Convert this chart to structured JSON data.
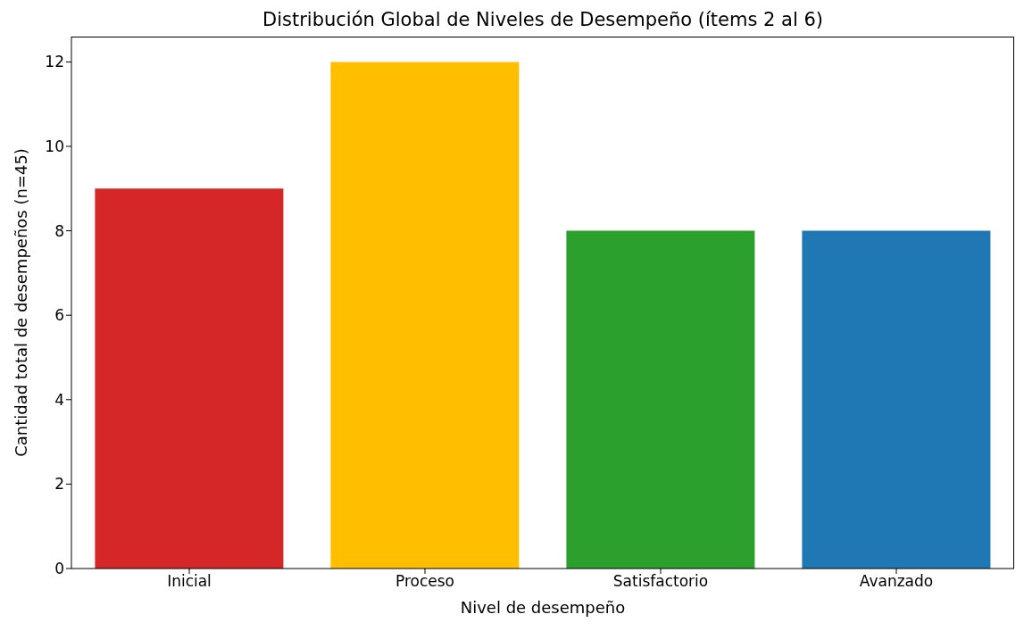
{
  "chart_data": {
    "type": "bar",
    "title": "Distribución Global de Niveles de Desempeño (ítems 2 al 6)",
    "xlabel": "Nivel de desempeño",
    "ylabel": "Cantidad total de desempeños (n=45)",
    "categories": [
      "Inicial",
      "Proceso",
      "Satisfactorio",
      "Avanzado"
    ],
    "values": [
      9,
      12,
      8,
      8
    ],
    "colors": [
      "#d62728",
      "#ffbf00",
      "#2ca02c",
      "#1f77b4"
    ],
    "ylim": [
      0,
      12.6
    ],
    "yticks": [
      0,
      2,
      4,
      6,
      8,
      10,
      12
    ],
    "grid": false,
    "legend": false
  }
}
